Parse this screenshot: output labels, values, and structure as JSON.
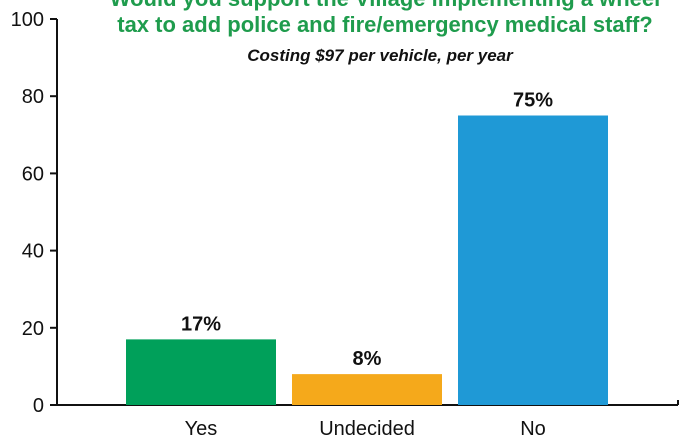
{
  "chart_data": {
    "type": "bar",
    "title_lines": [
      "Would you support the Village implementing a wheel",
      "tax to add police and fire/emergency medical staff?"
    ],
    "subtitle": "Costing $97 per vehicle, per year",
    "categories": [
      "Yes",
      "Undecided",
      "No"
    ],
    "values": [
      17,
      8,
      75
    ],
    "data_labels": [
      "17%",
      "8%",
      "75%"
    ],
    "colors": [
      "#00a05a",
      "#f5a91b",
      "#1f99d6"
    ],
    "yticks": [
      0,
      20,
      40,
      60,
      80,
      100
    ],
    "ylim": [
      0,
      100
    ],
    "xlabel": "",
    "ylabel": "",
    "grid": false
  }
}
